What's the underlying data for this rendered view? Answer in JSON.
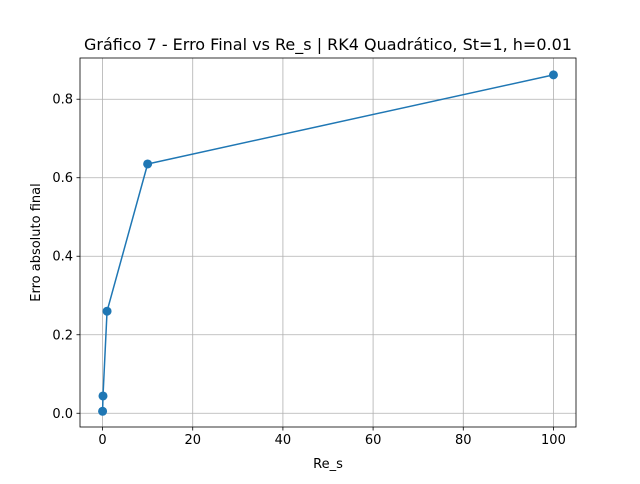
{
  "chart_data": {
    "type": "line",
    "title": "Gráfico 7 - Erro Final vs Re_s | RK4 Quadrático, St=1, h=0.01",
    "xlabel": "Re_s",
    "ylabel": "Erro absoluto final",
    "xlim": [
      -5,
      105
    ],
    "ylim": [
      -0.035,
      0.905
    ],
    "xticks": [
      0,
      20,
      40,
      60,
      80,
      100
    ],
    "xtick_labels": [
      "0",
      "20",
      "40",
      "60",
      "80",
      "100"
    ],
    "yticks": [
      0.0,
      0.2,
      0.4,
      0.6,
      0.8
    ],
    "ytick_labels": [
      "0.0",
      "0.2",
      "0.4",
      "0.6",
      "0.8"
    ],
    "grid": true,
    "legend": "none",
    "series": [
      {
        "color": "#1f77b4",
        "marker": "circle",
        "x": [
          0.01,
          0.1,
          1,
          10,
          100
        ],
        "y": [
          0.005,
          0.044,
          0.26,
          0.635,
          0.862
        ]
      }
    ]
  }
}
